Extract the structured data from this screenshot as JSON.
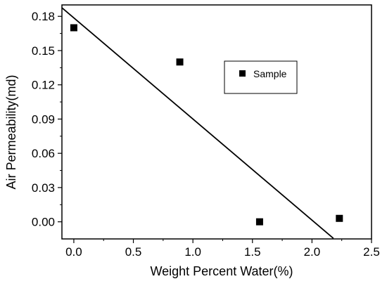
{
  "chart_data": {
    "type": "scatter",
    "title": "",
    "xlabel": "Weight Percent Water(%)",
    "ylabel": "Air Permeability(md)",
    "xlim": [
      -0.1,
      2.5
    ],
    "ylim": [
      -0.015,
      0.19
    ],
    "xticks": [
      0.0,
      0.5,
      1.0,
      1.5,
      2.0,
      2.5
    ],
    "xtick_labels": [
      "0.0",
      "0.5",
      "1.0",
      "1.5",
      "2.0",
      "2.5"
    ],
    "yticks": [
      0.0,
      0.03,
      0.06,
      0.09,
      0.12,
      0.15,
      0.18
    ],
    "ytick_labels": [
      "0.00",
      "0.03",
      "0.06",
      "0.09",
      "0.12",
      "0.15",
      "0.18"
    ],
    "grid": false,
    "legend_placement": "center-right",
    "series": [
      {
        "name": "Sample",
        "marker": "square",
        "color": "#000000",
        "x": [
          0.0,
          0.89,
          1.56,
          2.23
        ],
        "y": [
          0.17,
          0.14,
          0.0,
          0.003
        ]
      }
    ],
    "fit_line": {
      "color": "#000000",
      "x": [
        -0.1,
        2.18
      ],
      "y": [
        0.1875,
        -0.0145
      ]
    }
  }
}
